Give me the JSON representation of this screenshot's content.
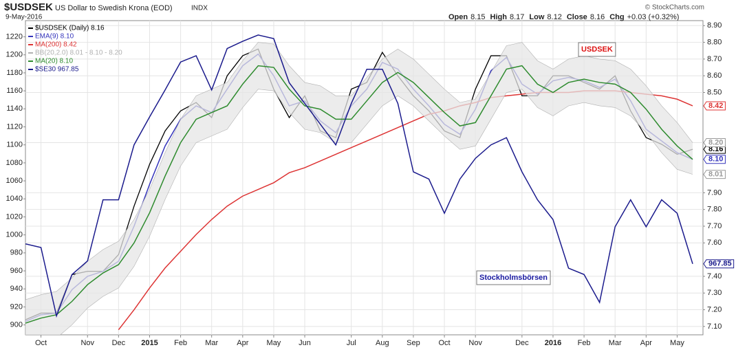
{
  "chart_data": {
    "type": "line",
    "symbol": "$USDSEK",
    "title": "US Dollar to Swedish Krona (EOD)",
    "exchange": "INDX",
    "date": "9-May-2016",
    "credit": "© StockCharts.com",
    "quote": [
      {
        "label": "Open",
        "value": "8.15"
      },
      {
        "label": "High",
        "value": "8.17"
      },
      {
        "label": "Low",
        "value": "8.12"
      },
      {
        "label": "Close",
        "value": "8.16"
      },
      {
        "label": "Chg",
        "value": "+0.03 (+0.32%)"
      }
    ],
    "annotations": [
      {
        "text": "USDSEK",
        "color": "#dd1111"
      },
      {
        "text": "Stockholmsbörsen",
        "color": "#1a1aa0"
      }
    ],
    "categories": [
      null,
      "Oct",
      null,
      null,
      "Nov",
      null,
      "Dec",
      null,
      "2015",
      null,
      "Feb",
      null,
      "Mar",
      null,
      "Apr",
      null,
      "May",
      null,
      "Jun",
      null,
      null,
      "Jul",
      null,
      "Aug",
      null,
      "Sep",
      null,
      "Oct",
      null,
      "Nov",
      null,
      null,
      "Dec",
      null,
      "2016",
      null,
      "Feb",
      null,
      "Mar",
      null,
      "Apr",
      null,
      "May",
      null
    ],
    "ylim": [
      889,
      1238
    ],
    "yticks": [
      900,
      920,
      940,
      960,
      980,
      1000,
      1020,
      1040,
      1060,
      1080,
      1100,
      1120,
      1140,
      1160,
      1180,
      1200,
      1220
    ],
    "y2lim": [
      7.05,
      8.93
    ],
    "y2ticks": [
      {
        "value": 7.1,
        "label": "7.10"
      },
      {
        "value": 7.2,
        "label": "7.20"
      },
      {
        "value": 7.3,
        "label": "7.30"
      },
      {
        "value": 7.4,
        "label": "7.40"
      },
      {
        "value": 7.6,
        "label": "7.60"
      },
      {
        "value": 7.7,
        "label": "7.70"
      },
      {
        "value": 7.8,
        "label": "7.80"
      },
      {
        "value": 7.9,
        "label": "7.90"
      },
      {
        "value": 8.2,
        "label": "8.20"
      },
      {
        "value": 8.5,
        "label": "8.50"
      },
      {
        "value": 8.6,
        "label": "8.60"
      },
      {
        "value": 8.7,
        "label": "8.70"
      },
      {
        "value": 8.8,
        "label": "8.80"
      },
      {
        "value": 8.9,
        "label": "8.90"
      }
    ],
    "grid": true,
    "series": [
      {
        "name": "$USDSEK (Daily) 8.16",
        "color": "#000000",
        "axis": "y2",
        "tag": "8.16",
        "values": [
          7.14,
          7.18,
          7.18,
          7.41,
          7.43,
          7.43,
          7.53,
          7.82,
          8.07,
          8.27,
          8.39,
          8.44,
          8.35,
          8.6,
          8.72,
          8.76,
          8.52,
          8.35,
          8.48,
          8.27,
          8.23,
          8.52,
          8.56,
          8.74,
          8.6,
          8.48,
          8.39,
          8.27,
          8.23,
          8.52,
          8.72,
          8.72,
          8.48,
          8.48,
          8.6,
          8.6,
          8.56,
          8.52,
          8.6,
          8.39,
          8.23,
          8.19,
          8.13,
          8.16
        ]
      },
      {
        "name": "EMA(9) 8.10",
        "color": "#3333bb",
        "axis": "y2",
        "tag": "8.10",
        "values": [
          7.13,
          7.17,
          7.18,
          7.32,
          7.4,
          7.43,
          7.49,
          7.7,
          7.95,
          8.18,
          8.34,
          8.42,
          8.38,
          8.52,
          8.66,
          8.73,
          8.6,
          8.42,
          8.45,
          8.33,
          8.26,
          8.42,
          8.52,
          8.68,
          8.64,
          8.52,
          8.42,
          8.31,
          8.25,
          8.4,
          8.63,
          8.71,
          8.55,
          8.49,
          8.57,
          8.59,
          8.57,
          8.53,
          8.58,
          8.45,
          8.28,
          8.21,
          8.14,
          8.1
        ]
      },
      {
        "name": "MA(200) 8.42",
        "color": "#dd3333",
        "axis": "y2",
        "tag": "8.42",
        "values": [
          null,
          null,
          null,
          null,
          null,
          null,
          7.08,
          7.2,
          7.33,
          7.45,
          7.55,
          7.65,
          7.74,
          7.82,
          7.88,
          7.92,
          7.96,
          8.02,
          8.05,
          8.09,
          8.13,
          8.17,
          8.21,
          8.25,
          8.29,
          8.33,
          8.37,
          8.39,
          8.42,
          8.44,
          8.47,
          8.48,
          8.49,
          8.5,
          8.5,
          8.5,
          8.51,
          8.51,
          8.51,
          8.5,
          8.49,
          8.48,
          8.46,
          8.42
        ]
      },
      {
        "name": "BB(20,2.0) 8.01 - 8.10 - 8.20",
        "color": "#b0b0b0",
        "band": true,
        "axis": "y2",
        "upper_tag": "8.20",
        "lower_tag": "8.01",
        "upper": [
          7.26,
          7.29,
          7.31,
          7.39,
          7.49,
          7.56,
          7.61,
          7.74,
          7.92,
          8.14,
          8.34,
          8.48,
          8.52,
          8.56,
          8.69,
          8.8,
          8.79,
          8.66,
          8.56,
          8.54,
          8.48,
          8.48,
          8.59,
          8.7,
          8.76,
          8.7,
          8.61,
          8.52,
          8.44,
          8.46,
          8.62,
          8.78,
          8.8,
          8.69,
          8.64,
          8.7,
          8.72,
          8.7,
          8.69,
          8.64,
          8.54,
          8.42,
          8.32,
          8.2
        ],
        "lower": [
          6.98,
          7.01,
          7.03,
          7.11,
          7.21,
          7.28,
          7.33,
          7.46,
          7.64,
          7.86,
          8.06,
          8.2,
          8.24,
          8.28,
          8.41,
          8.52,
          8.51,
          8.38,
          8.28,
          8.26,
          8.2,
          8.2,
          8.31,
          8.42,
          8.48,
          8.42,
          8.33,
          8.24,
          8.16,
          8.18,
          8.34,
          8.5,
          8.52,
          8.41,
          8.36,
          8.42,
          8.44,
          8.42,
          8.41,
          8.36,
          8.26,
          8.14,
          8.04,
          8.01
        ]
      },
      {
        "name": "MA(20) 8.10",
        "color": "#2e8b2e",
        "axis": "y2",
        "values": [
          7.12,
          7.15,
          7.17,
          7.25,
          7.35,
          7.42,
          7.47,
          7.6,
          7.78,
          8.0,
          8.2,
          8.34,
          8.38,
          8.42,
          8.55,
          8.66,
          8.65,
          8.52,
          8.42,
          8.4,
          8.34,
          8.34,
          8.45,
          8.56,
          8.62,
          8.56,
          8.47,
          8.38,
          8.3,
          8.32,
          8.48,
          8.64,
          8.66,
          8.55,
          8.5,
          8.56,
          8.58,
          8.56,
          8.55,
          8.5,
          8.4,
          8.28,
          8.18,
          8.1
        ]
      },
      {
        "name": "$SE30 967.85",
        "color": "#1a1a8c",
        "tag": "967.85",
        "values": [
          990,
          986,
          910,
          956,
          971,
          1039,
          1039,
          1100,
          1131,
          1161,
          1192,
          1199,
          1161,
          1207,
          1215,
          1222,
          1218,
          1169,
          1146,
          1123,
          1100,
          1146,
          1184,
          1184,
          1146,
          1070,
          1062,
          1024,
          1062,
          1085,
          1100,
          1108,
          1070,
          1039,
          1017,
          963,
          956,
          925,
          1009,
          1039,
          1009,
          1039,
          1024,
          967.85
        ]
      }
    ]
  }
}
